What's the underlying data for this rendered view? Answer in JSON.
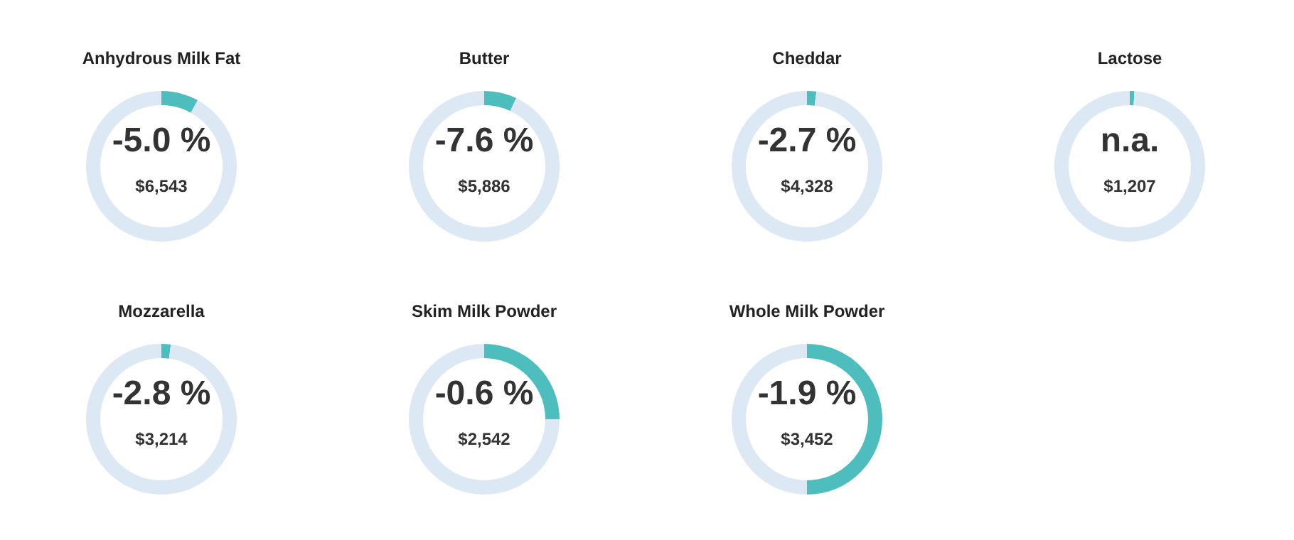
{
  "chart_data": [
    {
      "type": "donut",
      "title": "Anhydrous Milk Fat",
      "categories": [
        null,
        null
      ],
      "values": [
        8,
        92
      ],
      "colors": [
        "#4dbdbe",
        "#dde8f5"
      ],
      "annotations": [
        "-5.0 %",
        "$6,543"
      ]
    },
    {
      "type": "donut",
      "title": "Butter",
      "categories": [
        null,
        null
      ],
      "values": [
        7,
        93
      ],
      "colors": [
        "#4dbdbe",
        "#dde8f5"
      ],
      "annotations": [
        "-7.6 %",
        "$5,886"
      ]
    },
    {
      "type": "donut",
      "title": "Cheddar",
      "categories": [
        null,
        null
      ],
      "values": [
        2,
        98
      ],
      "colors": [
        "#4dbdbe",
        "#dde8f5"
      ],
      "annotations": [
        "-2.7 %",
        "$4,328"
      ]
    },
    {
      "type": "donut",
      "title": "Lactose",
      "categories": [
        null,
        null
      ],
      "values": [
        1,
        99
      ],
      "colors": [
        "#4dbdbe",
        "#dde8f5"
      ],
      "annotations": [
        "n.a.",
        "$1,207"
      ]
    },
    {
      "type": "donut",
      "title": "Mozzarella",
      "categories": [
        null,
        null
      ],
      "values": [
        2,
        98
      ],
      "colors": [
        "#4dbdbe",
        "#dde8f5"
      ],
      "annotations": [
        "-2.8 %",
        "$3,214"
      ]
    },
    {
      "type": "donut",
      "title": "Skim Milk Powder",
      "categories": [
        null,
        null
      ],
      "values": [
        25,
        75
      ],
      "colors": [
        "#4dbdbe",
        "#dde8f5"
      ],
      "annotations": [
        "-0.6 %",
        "$2,542"
      ]
    },
    {
      "type": "donut",
      "title": "Whole Milk Powder",
      "categories": [
        null,
        null
      ],
      "values": [
        50,
        50
      ],
      "colors": [
        "#4dbdbe",
        "#dde8f5"
      ],
      "annotations": [
        "-1.9 %",
        "$3,452"
      ]
    }
  ]
}
